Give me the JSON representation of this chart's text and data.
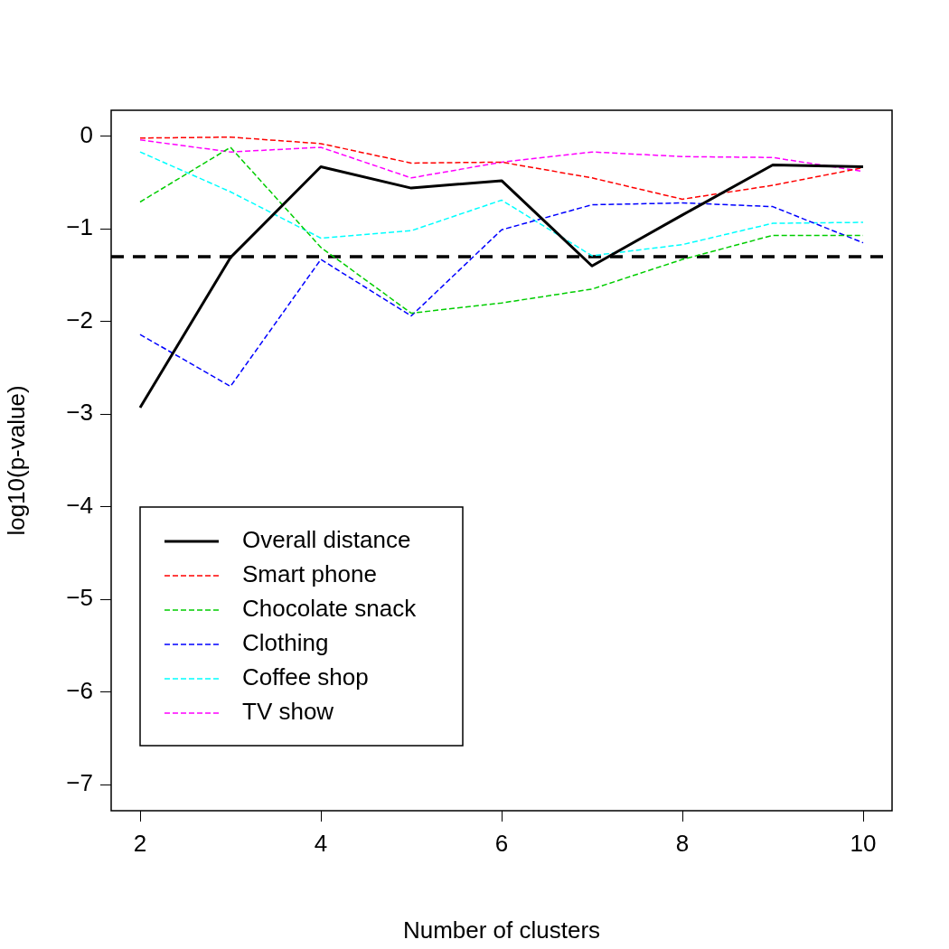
{
  "chart_data": {
    "type": "line",
    "xlabel": "Number of clusters",
    "ylabel": "log10(p-value)",
    "x": [
      2,
      3,
      4,
      5,
      6,
      7,
      8,
      9,
      10
    ],
    "xlim": [
      1.68,
      10.32
    ],
    "xticks": [
      2,
      4,
      6,
      8,
      10
    ],
    "ylim": [
      -7.28,
      0.28
    ],
    "yticks": [
      0,
      -1,
      -2,
      -3,
      -4,
      -5,
      -6,
      -7
    ],
    "grid": false,
    "legend": "bottom left",
    "marker": "none",
    "series": [
      {
        "name": "Overall distance",
        "color": "#000000",
        "line_style": "solid",
        "values": [
          -2.93,
          -1.31,
          -0.33,
          -0.56,
          -0.48,
          -1.4,
          -0.85,
          -0.31,
          -0.33
        ]
      },
      {
        "name": "Smart phone",
        "color": "#ff0000",
        "line_style": "dashed",
        "values": [
          -0.02,
          -0.01,
          -0.08,
          -0.29,
          -0.28,
          -0.45,
          -0.68,
          -0.53,
          -0.34
        ]
      },
      {
        "name": "Chocolate snack",
        "color": "#00cd00",
        "line_style": "dashed",
        "values": [
          -0.71,
          -0.12,
          -1.2,
          -1.91,
          -1.8,
          -1.65,
          -1.33,
          -1.07,
          -1.07
        ]
      },
      {
        "name": "Clothing",
        "color": "#0000ff",
        "line_style": "dashed",
        "values": [
          -2.14,
          -2.7,
          -1.33,
          -1.94,
          -1.01,
          -0.74,
          -0.72,
          -0.76,
          -1.15
        ]
      },
      {
        "name": "Coffee shop",
        "color": "#00ffff",
        "line_style": "dashed",
        "values": [
          -0.17,
          -0.6,
          -1.1,
          -1.02,
          -0.69,
          -1.29,
          -1.17,
          -0.94,
          -0.93
        ]
      },
      {
        "name": "TV show",
        "color": "#ff00ff",
        "line_style": "dashed",
        "values": [
          -0.04,
          -0.17,
          -0.12,
          -0.45,
          -0.28,
          -0.17,
          -0.22,
          -0.23,
          -0.38
        ]
      }
    ],
    "ref_lines": [
      {
        "axis": "y",
        "value": -1.3,
        "color": "#000000",
        "line_style": "dashed"
      }
    ]
  }
}
